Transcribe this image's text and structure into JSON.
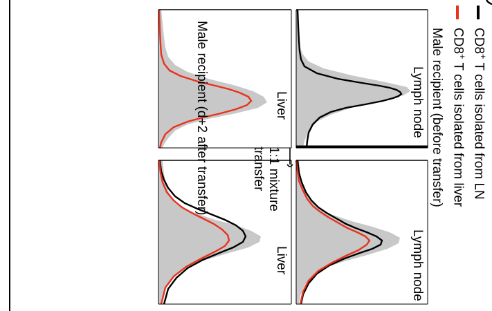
{
  "legend": {
    "items": [
      {
        "label_prefix": "CD8",
        "label_sup": "+",
        "label_suffix": " T cells isolated from LN",
        "color": "#000000"
      },
      {
        "label_prefix": "CD8",
        "label_sup": "+",
        "label_suffix": " T cells isolated from liver",
        "color": "#e8321e"
      }
    ]
  },
  "conditions": {
    "before": "Male recipient (before transfer)",
    "after": "Male recipient (d+2 after transfer)"
  },
  "transfer_note": {
    "line1": "1:1 mixture",
    "line2": "transfer"
  },
  "panels": {
    "before_lymph": "Lymph node",
    "before_liver": "Liver",
    "after_lymph": "Lymph node",
    "after_liver": "Liver"
  },
  "colors": {
    "ln_curve": "#000000",
    "liver_curve": "#e8321e",
    "background_hist": "#c8c8c8"
  }
}
